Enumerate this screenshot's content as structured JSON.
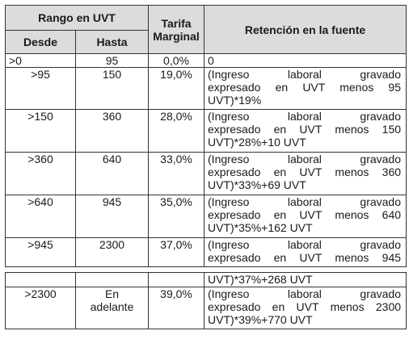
{
  "headers": {
    "rango": "Rango en UVT",
    "desde": "Desde",
    "hasta": "Hasta",
    "tarifa": "Tarifa Marginal",
    "retencion": "Retención en la fuente"
  },
  "rows": [
    {
      "desde": ">0",
      "hasta": "95",
      "tarifa": "0,0%",
      "ret1": "0",
      "ret2": "",
      "ret3": ""
    },
    {
      "desde": ">95",
      "hasta": "150",
      "tarifa": "19,0%",
      "ret1": "(Ingreso laboral gravado",
      "ret2": "expresado en UVT menos 95",
      "ret3": "UVT)*19%"
    },
    {
      "desde": ">150",
      "hasta": "360",
      "tarifa": "28,0%",
      "ret1": "(Ingreso laboral gravado",
      "ret2": "expresado en UVT menos 150",
      "ret3": "UVT)*28%+10 UVT"
    },
    {
      "desde": ">360",
      "hasta": "640",
      "tarifa": "33,0%",
      "ret1": "(Ingreso laboral gravado",
      "ret2": "expresado en UVT menos 360",
      "ret3": "UVT)*33%+69 UVT"
    },
    {
      "desde": ">640",
      "hasta": "945",
      "tarifa": "35,0%",
      "ret1": "(Ingreso laboral gravado",
      "ret2": "expresado en UVT menos 640",
      "ret3": "UVT)*35%+162 UVT"
    },
    {
      "desde": ">945",
      "hasta": "2300",
      "tarifa": "37,0%",
      "ret1": "(Ingreso laboral gravado",
      "ret2": "expresado en UVT menos 945",
      "ret3": ""
    }
  ],
  "continuation": "UVT)*37%+268 UVT",
  "last_row": {
    "desde": ">2300",
    "hasta": "En adelante",
    "tarifa": "39,0%",
    "ret1": "(Ingreso laboral gravado",
    "ret2": "expresado en UVT menos 2300",
    "ret3": "UVT)*39%+770 UVT"
  }
}
